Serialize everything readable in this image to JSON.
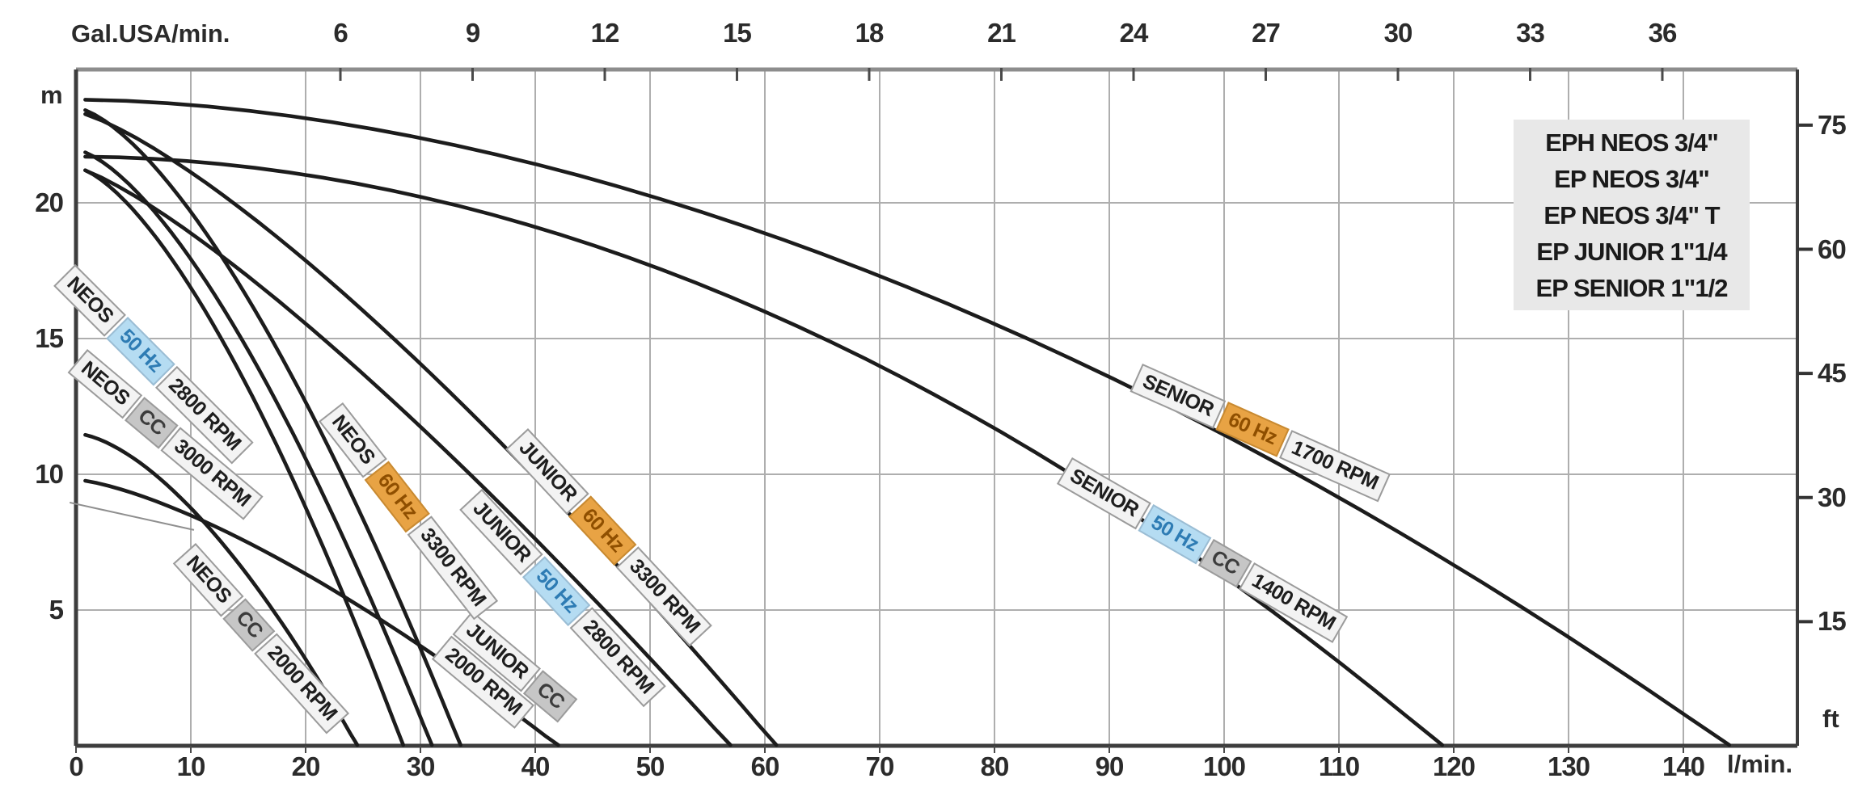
{
  "axes": {
    "top": {
      "title": "Gal.USA/min.",
      "ticks": [
        6,
        9,
        12,
        15,
        18,
        21,
        24,
        27,
        30,
        33,
        36
      ]
    },
    "bottom": {
      "unit_label": "l/min.",
      "ticks": [
        0,
        10,
        20,
        30,
        40,
        50,
        60,
        70,
        80,
        90,
        100,
        110,
        120,
        130,
        140
      ]
    },
    "left": {
      "unit_label": "m",
      "ticks": [
        5,
        10,
        15,
        20
      ]
    },
    "right": {
      "unit_label": "ft",
      "ticks": [
        15,
        30,
        45,
        60,
        75
      ]
    }
  },
  "legend": {
    "lines": [
      "EPH NEOS 3/4\"",
      "EP NEOS 3/4\"",
      "EP NEOS 3/4\" T",
      "EP JUNIOR 1\"1/4",
      "EP SENIOR 1\"1/2"
    ]
  },
  "colors": {
    "curve": "#1c1c1c",
    "grid": "#aeaeae",
    "border_top": "#8d8d8d",
    "border_dark": "#3d3d3d",
    "legend_bg": "#e8e8e8",
    "chip_plain_bg": "#f3f3f3",
    "chip_blue_bg": "#b5dcf2",
    "chip_orange_bg": "#e8a344",
    "chip_gray_bg": "#c6c6c6"
  },
  "chart_data": {
    "type": "line",
    "title": "",
    "xlabel_bottom": "l/min.",
    "xlabel_top": "Gal.USA/min.",
    "ylabel_left": "m",
    "ylabel_right": "ft",
    "xlim_lmin": [
      0,
      150
    ],
    "ylim_m": [
      0,
      25
    ],
    "grid": true,
    "legend_position": "top-right",
    "series": [
      {
        "id": "senior60",
        "name": "SENIOR 60 Hz 1700 RPM",
        "shutoff_head_m": 23.8,
        "max_flow_lmin": 144,
        "curve_exp": 1.8,
        "points_lmin_m": [
          [
            0,
            23.8
          ],
          [
            36,
            21.8
          ],
          [
            72,
            17.0
          ],
          [
            108,
            9.6
          ],
          [
            144,
            0
          ]
        ],
        "label": {
          "parts": [
            {
              "text": "SENIOR",
              "type": "name"
            },
            {
              "text": "60 Hz",
              "type": "hz60"
            },
            {
              "text": "1700 RPM",
              "type": "rpm"
            }
          ],
          "q": 92.89,
          "h": 14.08,
          "angle": 24,
          "two_line": false
        }
      },
      {
        "id": "senior50cc",
        "name": "SENIOR 50 Hz CC 1400 RPM",
        "shutoff_head_m": 21.7,
        "max_flow_lmin": 119,
        "curve_exp": 1.95,
        "points_lmin_m": [
          [
            0,
            21.7
          ],
          [
            29.8,
            20.2
          ],
          [
            59.5,
            16.1
          ],
          [
            89.3,
            9.3
          ],
          [
            119,
            0
          ]
        ],
        "label": {
          "parts": [
            {
              "text": "SENIOR",
              "type": "name"
            },
            {
              "text": "50 Hz",
              "type": "hz50"
            },
            {
              "text": "CC",
              "type": "cc"
            },
            {
              "text": "1400 RPM",
              "type": "rpm"
            }
          ],
          "q": 86.76,
          "h": 10.63,
          "angle": 30,
          "two_line": false
        }
      },
      {
        "id": "junior60",
        "name": "JUNIOR 60 Hz 3300 RPM",
        "shutoff_head_m": 23.35,
        "max_flow_lmin": 61,
        "curve_exp": 1.3,
        "points_lmin_m": [
          [
            0,
            23.4
          ],
          [
            15.3,
            19.5
          ],
          [
            30.5,
            13.9
          ],
          [
            45.8,
            7.3
          ],
          [
            61,
            0
          ]
        ],
        "label": {
          "parts": [
            {
              "text": "JUNIOR",
              "type": "name"
            },
            {
              "text": "60 Hz",
              "type": "hz60"
            },
            {
              "text": "3300 RPM",
              "type": "rpm"
            }
          ],
          "q": 39.37,
          "h": 11.7,
          "angle": 47,
          "two_line": false
        }
      },
      {
        "id": "junior50",
        "name": "JUNIOR 50 Hz 2800 RPM",
        "shutoff_head_m": 21.3,
        "max_flow_lmin": 57,
        "curve_exp": 1.25,
        "points_lmin_m": [
          [
            0,
            21.3
          ],
          [
            14.3,
            17.5
          ],
          [
            28.5,
            12.3
          ],
          [
            42.8,
            6.4
          ],
          [
            57,
            0
          ]
        ],
        "label": {
          "parts": [
            {
              "text": "JUNIOR",
              "type": "name"
            },
            {
              "text": "50 Hz",
              "type": "hz50"
            },
            {
              "text": "2800 RPM",
              "type": "rpm"
            }
          ],
          "q": 35.35,
          "h": 9.46,
          "angle": 47,
          "two_line": false
        }
      },
      {
        "id": "juniorcc",
        "name": "JUNIOR CC 2000 RPM",
        "shutoff_head_m": 9.8,
        "max_flow_lmin": 42,
        "curve_exp": 1.4,
        "points_lmin_m": [
          [
            0,
            9.8
          ],
          [
            10.5,
            8.4
          ],
          [
            21,
            6.1
          ],
          [
            31.5,
            3.3
          ],
          [
            42,
            0
          ]
        ],
        "label": {
          "parts": [
            {
              "text": "JUNIOR",
              "type": "name"
            },
            {
              "text": "CC",
              "type": "cc"
            }
          ],
          "parts2": [
            {
              "text": "2000 RPM",
              "type": "rpm"
            }
          ],
          "q": 34.51,
          "h": 4.97,
          "angle": 40,
          "two_line": true
        }
      },
      {
        "id": "neos60",
        "name": "NEOS 60 Hz 3300 RPM",
        "shutoff_head_m": 23.5,
        "max_flow_lmin": 33.5,
        "curve_exp": 1.5,
        "points_lmin_m": [
          [
            0,
            23.5
          ],
          [
            8.4,
            20.6
          ],
          [
            16.8,
            15.2
          ],
          [
            25.1,
            8.2
          ],
          [
            33.5,
            0
          ]
        ],
        "label": {
          "parts": [
            {
              "text": "NEOS",
              "type": "name"
            },
            {
              "text": "60 Hz",
              "type": "hz60"
            },
            {
              "text": "3300 RPM",
              "type": "rpm"
            }
          ],
          "q": 23.24,
          "h": 12.65,
          "angle": 52,
          "two_line": false
        }
      },
      {
        "id": "neoscc3000",
        "name": "NEOS CC 3000 RPM",
        "shutoff_head_m": 21.95,
        "max_flow_lmin": 31,
        "curve_exp": 1.5,
        "points_lmin_m": [
          [
            0,
            22
          ],
          [
            7.8,
            19.3
          ],
          [
            15.5,
            14.2
          ],
          [
            23.3,
            7.7
          ],
          [
            31,
            0
          ]
        ],
        "label": {
          "parts": [
            {
              "text": "NEOS",
              "type": "name"
            },
            {
              "text": "CC",
              "type": "cc"
            },
            {
              "text": "3000 RPM",
              "type": "rpm"
            }
          ],
          "q": 0.99,
          "h": 14.61,
          "angle": 40,
          "two_line": false
        }
      },
      {
        "id": "neos50",
        "name": "NEOS 50 Hz 2800 RPM",
        "shutoff_head_m": 21.3,
        "max_flow_lmin": 28.5,
        "curve_exp": 1.5,
        "points_lmin_m": [
          [
            0,
            21.3
          ],
          [
            7.1,
            18.6
          ],
          [
            14.3,
            13.8
          ],
          [
            21.4,
            7.5
          ],
          [
            28.5,
            0
          ]
        ],
        "label": {
          "parts": [
            {
              "text": "NEOS",
              "type": "name"
            },
            {
              "text": "50 Hz",
              "type": "hz50"
            },
            {
              "text": "2800 RPM",
              "type": "rpm"
            }
          ],
          "q": -0.07,
          "h": 17.73,
          "angle": 45,
          "two_line": false
        }
      },
      {
        "id": "neoscc2000",
        "name": "NEOS CC 2000 RPM",
        "shutoff_head_m": 11.5,
        "max_flow_lmin": 24.5,
        "curve_exp": 1.6,
        "points_lmin_m": [
          [
            0,
            11.5
          ],
          [
            6.1,
            10.2
          ],
          [
            12.3,
            7.7
          ],
          [
            18.4,
            4.2
          ],
          [
            24.5,
            0
          ]
        ],
        "label": {
          "parts": [
            {
              "text": "NEOS",
              "type": "name"
            },
            {
              "text": "CC",
              "type": "cc"
            },
            {
              "text": "2000 RPM",
              "type": "rpm"
            }
          ],
          "q": 10.42,
          "h": 7.47,
          "angle": 48,
          "two_line": false
        }
      }
    ],
    "annotation_leader_line": {
      "from_lmin_m": [
        -0.55,
        8.96
      ],
      "to_lmin_m": [
        10.28,
        7.95
      ]
    }
  }
}
